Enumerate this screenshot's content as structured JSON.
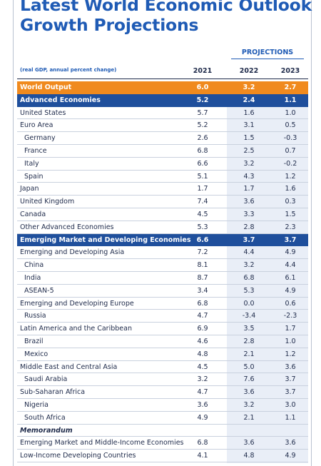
{
  "title": "Latest World Economic Outlook Growth Projections",
  "header": {
    "projections_label": "PROJECTIONS",
    "note": "(real GDP, annual percent change)",
    "years": [
      "2021",
      "2022",
      "2023"
    ]
  },
  "rows": [
    {
      "label": "World Output",
      "values": [
        "6.0",
        "3.2",
        "2.7"
      ],
      "style": "orange"
    },
    {
      "label": "Advanced Economies",
      "values": [
        "5.2",
        "2.4",
        "1.1"
      ],
      "style": "blue"
    },
    {
      "label": "United States",
      "values": [
        "5.7",
        "1.6",
        "1.0"
      ],
      "style": "normal"
    },
    {
      "label": "Euro Area",
      "values": [
        "5.2",
        "3.1",
        "0.5"
      ],
      "style": "normal"
    },
    {
      "label": "Germany",
      "values": [
        "2.6",
        "1.5",
        "-0.3"
      ],
      "style": "sub"
    },
    {
      "label": "France",
      "values": [
        "6.8",
        "2.5",
        "0.7"
      ],
      "style": "sub"
    },
    {
      "label": "Italy",
      "values": [
        "6.6",
        "3.2",
        "-0.2"
      ],
      "style": "sub"
    },
    {
      "label": "Spain",
      "values": [
        "5.1",
        "4.3",
        "1.2"
      ],
      "style": "sub"
    },
    {
      "label": "Japan",
      "values": [
        "1.7",
        "1.7",
        "1.6"
      ],
      "style": "normal"
    },
    {
      "label": "United Kingdom",
      "values": [
        "7.4",
        "3.6",
        "0.3"
      ],
      "style": "normal"
    },
    {
      "label": "Canada",
      "values": [
        "4.5",
        "3.3",
        "1.5"
      ],
      "style": "normal"
    },
    {
      "label": "Other Advanced Economies",
      "values": [
        "5.3",
        "2.8",
        "2.3"
      ],
      "style": "normal"
    },
    {
      "label": "Emerging Market and Developing Economies",
      "values": [
        "6.6",
        "3.7",
        "3.7"
      ],
      "style": "blue"
    },
    {
      "label": "Emerging and Developing Asia",
      "values": [
        "7.2",
        "4.4",
        "4.9"
      ],
      "style": "normal"
    },
    {
      "label": "China",
      "values": [
        "8.1",
        "3.2",
        "4.4"
      ],
      "style": "sub"
    },
    {
      "label": "India",
      "values": [
        "8.7",
        "6.8",
        "6.1"
      ],
      "style": "sub"
    },
    {
      "label": "ASEAN-5",
      "values": [
        "3.4",
        "5.3",
        "4.9"
      ],
      "style": "sub"
    },
    {
      "label": "Emerging and Developing Europe",
      "values": [
        "6.8",
        "0.0",
        "0.6"
      ],
      "style": "normal"
    },
    {
      "label": "Russia",
      "values": [
        "4.7",
        "-3.4",
        "-2.3"
      ],
      "style": "sub"
    },
    {
      "label": "Latin America and the Caribbean",
      "values": [
        "6.9",
        "3.5",
        "1.7"
      ],
      "style": "normal"
    },
    {
      "label": "Brazil",
      "values": [
        "4.6",
        "2.8",
        "1.0"
      ],
      "style": "sub"
    },
    {
      "label": "Mexico",
      "values": [
        "4.8",
        "2.1",
        "1.2"
      ],
      "style": "sub"
    },
    {
      "label": "Middle East and Central Asia",
      "values": [
        "4.5",
        "5.0",
        "3.6"
      ],
      "style": "normal"
    },
    {
      "label": "Saudi Arabia",
      "values": [
        "3.2",
        "7.6",
        "3.7"
      ],
      "style": "sub"
    },
    {
      "label": "Sub-Saharan Africa",
      "values": [
        "4.7",
        "3.6",
        "3.7"
      ],
      "style": "normal"
    },
    {
      "label": "Nigeria",
      "values": [
        "3.6",
        "3.2",
        "3.0"
      ],
      "style": "sub"
    },
    {
      "label": "South Africa",
      "values": [
        "4.9",
        "2.1",
        "1.1"
      ],
      "style": "sub"
    },
    {
      "label": "Memorandum",
      "values": [
        "",
        "",
        ""
      ],
      "style": "memo"
    },
    {
      "label": "Emerging Market and Middle-Income Economies",
      "values": [
        "6.8",
        "3.6",
        "3.6"
      ],
      "style": "normal"
    },
    {
      "label": "Low-Income Developing Countries",
      "values": [
        "4.1",
        "4.8",
        "4.9"
      ],
      "style": "normal"
    }
  ],
  "colors": {
    "title": "#1f5bb5",
    "world_output_row": "#f08a1e",
    "group_row": "#1f4f9c",
    "projection_shade": "#e9eef7"
  }
}
